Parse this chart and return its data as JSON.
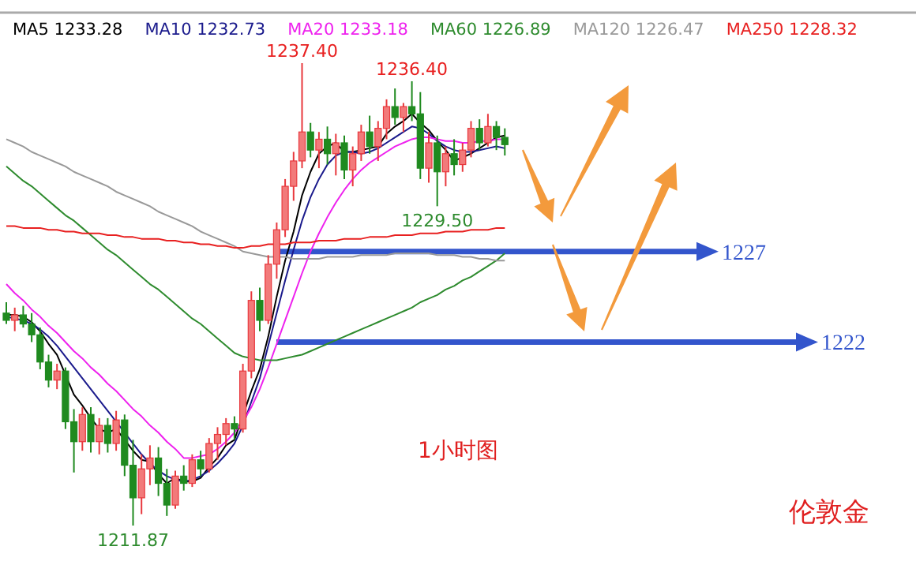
{
  "chart_data": {
    "type": "candlestick",
    "categories": [
      null,
      null,
      null,
      null,
      null,
      null,
      null,
      null,
      null,
      null,
      null,
      null,
      null,
      null,
      null,
      null,
      null,
      null,
      null,
      null,
      null,
      null,
      null,
      null,
      null,
      null,
      null,
      null,
      null,
      null,
      null,
      null,
      null,
      null,
      null,
      null,
      null,
      null,
      null,
      null,
      null,
      null,
      null,
      null,
      null,
      null,
      null,
      null,
      null,
      null,
      null,
      null,
      null,
      null,
      null,
      null,
      null,
      null,
      null,
      null
    ],
    "ohlc": [
      [
        1223.6,
        1224.2,
        1223.0,
        1223.2
      ],
      [
        1223.2,
        1223.9,
        1222.6,
        1223.5
      ],
      [
        1223.5,
        1224.0,
        1222.8,
        1223.0
      ],
      [
        1223.0,
        1223.6,
        1222.0,
        1222.4
      ],
      [
        1222.4,
        1222.8,
        1220.5,
        1220.9
      ],
      [
        1220.9,
        1221.3,
        1219.5,
        1219.9
      ],
      [
        1219.9,
        1220.8,
        1219.4,
        1220.4
      ],
      [
        1220.4,
        1220.6,
        1217.2,
        1217.6
      ],
      [
        1217.6,
        1218.3,
        1214.8,
        1216.5
      ],
      [
        1216.5,
        1218.4,
        1216.0,
        1218.0
      ],
      [
        1218.0,
        1218.4,
        1215.9,
        1216.5
      ],
      [
        1216.5,
        1217.8,
        1215.8,
        1217.4
      ],
      [
        1217.4,
        1217.8,
        1215.9,
        1216.4
      ],
      [
        1216.4,
        1218.2,
        1216.0,
        1217.7
      ],
      [
        1217.7,
        1218.0,
        1214.6,
        1215.2
      ],
      [
        1215.2,
        1216.6,
        1211.87,
        1213.4
      ],
      [
        1213.4,
        1215.8,
        1212.5,
        1215.0
      ],
      [
        1215.0,
        1216.3,
        1214.1,
        1215.6
      ],
      [
        1215.6,
        1216.2,
        1213.5,
        1214.2
      ],
      [
        1214.2,
        1215.0,
        1212.4,
        1213.0
      ],
      [
        1213.0,
        1214.9,
        1212.8,
        1214.6
      ],
      [
        1214.6,
        1215.2,
        1213.8,
        1214.2
      ],
      [
        1214.2,
        1215.8,
        1214.0,
        1215.5
      ],
      [
        1215.5,
        1216.0,
        1214.6,
        1215.0
      ],
      [
        1215.0,
        1216.7,
        1214.8,
        1216.4
      ],
      [
        1216.4,
        1217.3,
        1215.5,
        1216.9
      ],
      [
        1216.9,
        1217.8,
        1216.3,
        1217.5
      ],
      [
        1217.5,
        1217.9,
        1216.6,
        1217.2
      ],
      [
        1217.2,
        1220.8,
        1217.0,
        1220.4
      ],
      [
        1220.4,
        1224.8,
        1220.0,
        1224.3
      ],
      [
        1224.3,
        1225.0,
        1222.6,
        1223.2
      ],
      [
        1223.2,
        1226.8,
        1223.0,
        1226.3
      ],
      [
        1226.3,
        1228.6,
        1225.5,
        1228.2
      ],
      [
        1228.2,
        1231.0,
        1227.8,
        1230.6
      ],
      [
        1230.6,
        1232.5,
        1229.8,
        1232.0
      ],
      [
        1232.0,
        1237.4,
        1231.6,
        1233.6
      ],
      [
        1233.6,
        1234.1,
        1232.2,
        1232.6
      ],
      [
        1232.6,
        1233.6,
        1231.6,
        1233.2
      ],
      [
        1233.2,
        1233.9,
        1231.8,
        1232.4
      ],
      [
        1232.4,
        1233.5,
        1231.2,
        1233.0
      ],
      [
        1233.0,
        1233.4,
        1231.0,
        1231.5
      ],
      [
        1231.5,
        1232.8,
        1230.6,
        1232.4
      ],
      [
        1232.4,
        1234.0,
        1232.0,
        1233.6
      ],
      [
        1233.6,
        1234.5,
        1232.4,
        1232.8
      ],
      [
        1232.8,
        1234.2,
        1232.0,
        1233.8
      ],
      [
        1233.8,
        1235.4,
        1233.2,
        1235.0
      ],
      [
        1235.0,
        1236.0,
        1234.0,
        1234.4
      ],
      [
        1234.4,
        1235.2,
        1233.6,
        1235.0
      ],
      [
        1235.0,
        1236.4,
        1234.2,
        1234.6
      ],
      [
        1234.6,
        1235.8,
        1231.0,
        1231.6
      ],
      [
        1231.6,
        1233.6,
        1230.8,
        1233.0
      ],
      [
        1233.0,
        1233.4,
        1229.5,
        1231.4
      ],
      [
        1231.4,
        1232.8,
        1230.6,
        1232.4
      ],
      [
        1232.4,
        1233.2,
        1231.2,
        1231.8
      ],
      [
        1231.8,
        1233.0,
        1231.4,
        1232.6
      ],
      [
        1232.6,
        1234.2,
        1232.2,
        1233.8
      ],
      [
        1233.8,
        1234.3,
        1232.6,
        1233.0
      ],
      [
        1233.0,
        1234.6,
        1232.8,
        1233.9
      ],
      [
        1233.9,
        1234.2,
        1232.6,
        1233.3
      ],
      [
        1233.3,
        1233.8,
        1232.3,
        1232.9
      ]
    ],
    "series": [
      {
        "name": "MA5 1233.28",
        "type": "line",
        "color": "#000000",
        "values": [
          1223.5,
          1223.5,
          1223.4,
          1223.1,
          1222.6,
          1221.9,
          1221.3,
          1220.2,
          1219.1,
          1218.5,
          1217.8,
          1217.2,
          1217.0,
          1217.2,
          1216.6,
          1216.0,
          1215.5,
          1215.4,
          1214.7,
          1214.2,
          1214.5,
          1214.3,
          1214.3,
          1214.5,
          1215.1,
          1215.6,
          1216.3,
          1216.6,
          null,
          1219.3,
          1220.5,
          1222.3,
          1224.5,
          1226.5,
          1228.1,
          1230.1,
          1231.4,
          1232.4,
          1232.8,
          1233.0,
          1232.5,
          1232.5,
          1232.6,
          1232.7,
          1232.8,
          1233.5,
          1233.9,
          1234.2,
          1234.6,
          1234.1,
          1233.7,
          1233.1,
          1232.6,
          1232.0,
          1232.2,
          1232.4,
          1232.7,
          1233.0,
          1233.3,
          1233.4
        ]
      },
      {
        "name": "MA10 1232.73",
        "type": "line",
        "color": "#1a1a8c",
        "values": [
          1223.4,
          1223.3,
          1223.2,
          1223.0,
          1222.7,
          1222.3,
          1221.8,
          1221.2,
          1220.6,
          1220.0,
          1219.4,
          1218.8,
          1218.2,
          1217.6,
          1217.0,
          1216.4,
          1215.8,
          1215.3,
          1214.9,
          1214.6,
          1214.4,
          1214.3,
          1214.4,
          1214.6,
          1214.9,
          1215.3,
          1215.8,
          1216.4,
          1217.4,
          1218.7,
          1220.0,
          1221.8,
          1223.6,
          1225.4,
          1227.1,
          1228.7,
          1230.0,
          1231.0,
          1231.8,
          1232.3,
          1232.5,
          1232.5,
          1232.4,
          1232.5,
          1232.7,
          1233.0,
          1233.3,
          1233.6,
          1233.9,
          1233.8,
          1233.5,
          1233.1,
          1232.8,
          1232.6,
          1232.5,
          1232.5,
          1232.6,
          1232.7,
          1232.8,
          1232.7
        ]
      },
      {
        "name": "MA20 1233.18",
        "type": "line",
        "color": "#ee22ee",
        "values": [
          1225.2,
          1224.7,
          1224.3,
          1223.8,
          1223.4,
          1222.9,
          1222.5,
          1222.0,
          1221.5,
          1221.1,
          1220.6,
          1220.2,
          1219.7,
          1219.3,
          1218.8,
          1218.3,
          1217.9,
          1217.4,
          1217.0,
          1216.5,
          1216.1,
          1215.6,
          1215.6,
          1215.7,
          1215.8,
          1216.1,
          1216.5,
          1217.0,
          1217.6,
          1218.4,
          1219.4,
          1220.6,
          1221.9,
          1223.2,
          1224.5,
          1225.8,
          1227.0,
          1228.0,
          1228.9,
          1229.7,
          1230.4,
          1231.0,
          1231.5,
          1231.9,
          1232.2,
          1232.5,
          1232.8,
          1233.0,
          1233.2,
          1233.3,
          1233.3,
          1233.2,
          1233.1,
          1233.1,
          1233.0,
          1233.0,
          1233.1,
          1233.1,
          1233.2,
          1233.2
        ]
      },
      {
        "name": "MA60 1226.89",
        "type": "line",
        "color": "#2e8b2e",
        "values": [
          1231.7,
          1231.3,
          1230.9,
          1230.6,
          1230.2,
          1229.8,
          1229.4,
          1229.0,
          1228.7,
          1228.3,
          1227.9,
          1227.5,
          1227.1,
          1226.8,
          1226.4,
          1226.0,
          1225.6,
          1225.2,
          1224.9,
          1224.5,
          1224.1,
          1223.7,
          1223.3,
          1223.0,
          1222.6,
          1222.2,
          1221.8,
          1221.4,
          1221.2,
          1221.1,
          1221.0,
          1221.0,
          1221.0,
          1221.1,
          1221.2,
          1221.3,
          1221.5,
          1221.7,
          1221.9,
          1222.1,
          1222.3,
          1222.5,
          1222.7,
          1222.9,
          1223.1,
          1223.3,
          1223.5,
          1223.7,
          1223.9,
          1224.2,
          1224.4,
          1224.6,
          1224.9,
          1225.1,
          1225.4,
          1225.6,
          1225.9,
          1226.2,
          1226.5,
          1226.9
        ]
      },
      {
        "name": "MA120 1226.47",
        "type": "line",
        "color": "#999999",
        "values": [
          1233.2,
          1233.0,
          1232.8,
          1232.5,
          1232.3,
          1232.1,
          1231.9,
          1231.7,
          1231.4,
          1231.2,
          1231.0,
          1230.8,
          1230.6,
          1230.3,
          1230.1,
          1229.9,
          1229.7,
          1229.5,
          1229.2,
          1229.0,
          1228.8,
          1228.6,
          1228.4,
          1228.1,
          1227.9,
          1227.7,
          1227.5,
          1227.3,
          1227.0,
          1226.9,
          1226.8,
          1226.7,
          1226.7,
          1226.7,
          1226.6,
          1226.6,
          1226.6,
          1226.6,
          1226.7,
          1226.7,
          1226.7,
          1226.7,
          1226.8,
          1226.8,
          1226.8,
          1226.8,
          1226.9,
          1226.9,
          1226.9,
          1226.9,
          1226.9,
          1226.8,
          1226.8,
          1226.8,
          1226.7,
          1226.7,
          1226.6,
          1226.6,
          1226.5,
          1226.5
        ]
      },
      {
        "name": "MA250 1228.32",
        "type": "line",
        "color": "#e82020",
        "values": [
          1228.4,
          1228.4,
          1228.3,
          1228.3,
          1228.3,
          1228.2,
          1228.2,
          1228.1,
          1228.1,
          1228.0,
          1228.0,
          1228.0,
          1227.9,
          1227.9,
          1227.8,
          1227.8,
          1227.7,
          1227.7,
          1227.7,
          1227.6,
          1227.6,
          1227.5,
          1227.5,
          1227.4,
          1227.4,
          1227.3,
          1227.3,
          1227.2,
          1227.2,
          1227.3,
          1227.3,
          1227.4,
          1227.4,
          1227.4,
          1227.5,
          1227.5,
          1227.5,
          1227.6,
          1227.6,
          1227.6,
          1227.7,
          1227.7,
          1227.7,
          1227.8,
          1227.8,
          1227.8,
          1227.9,
          1227.9,
          1227.9,
          1228.0,
          1228.0,
          1228.0,
          1228.1,
          1228.1,
          1228.1,
          1228.2,
          1228.2,
          1228.2,
          1228.3,
          1228.3
        ]
      }
    ],
    "legend": "top",
    "ref_lines": [
      {
        "axis": "y",
        "value": 1227,
        "label": "1227",
        "color": "#3355cc"
      },
      {
        "axis": "y",
        "value": 1222,
        "label": "1222",
        "color": "#3355cc"
      }
    ],
    "annotations": [
      {
        "text": "1237.40",
        "y": 1237.4
      },
      {
        "text": "1236.40",
        "y": 1236.4
      },
      {
        "text": "1229.50",
        "y": 1229.5
      },
      {
        "text": "1211.87",
        "y": 1211.87
      },
      "1小时图",
      "伦敦金"
    ]
  }
}
